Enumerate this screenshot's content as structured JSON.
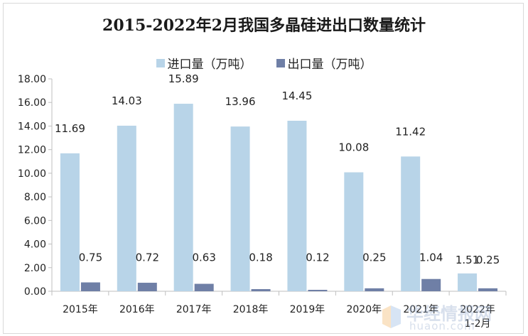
{
  "chart_data": {
    "type": "bar",
    "title": "2015-2022年2月我国多晶硅进出口数量统计",
    "categories": [
      "2015年",
      "2016年",
      "2017年",
      "2018年",
      "2019年",
      "2020年",
      "2021年",
      "2022年\n1-2月"
    ],
    "series": [
      {
        "name": "进口量（万吨）",
        "color": "#b8d4e8",
        "values": [
          11.69,
          14.03,
          15.89,
          13.96,
          14.45,
          10.08,
          11.42,
          1.51
        ]
      },
      {
        "name": "出口量（万吨）",
        "color": "#6f7fa6",
        "values": [
          0.75,
          0.72,
          0.63,
          0.18,
          0.12,
          0.25,
          1.04,
          0.25
        ]
      }
    ],
    "value_labels": [
      [
        "11.69",
        "14.03",
        "15.89",
        "13.96",
        "14.45",
        "10.08",
        "11.42",
        "1.51"
      ],
      [
        "0.75",
        "0.72",
        "0.63",
        "0.18",
        "0.12",
        "0.25",
        "1.04",
        "0.25"
      ]
    ],
    "yticks": [
      "0.00",
      "2.00",
      "4.00",
      "6.00",
      "8.00",
      "10.00",
      "12.00",
      "14.00",
      "16.00",
      "18.00"
    ],
    "ylim": [
      0,
      18
    ],
    "grid": false,
    "legend_position": "top-center"
  },
  "watermark": {
    "text": "华经情报网",
    "url": "huaon.com"
  }
}
